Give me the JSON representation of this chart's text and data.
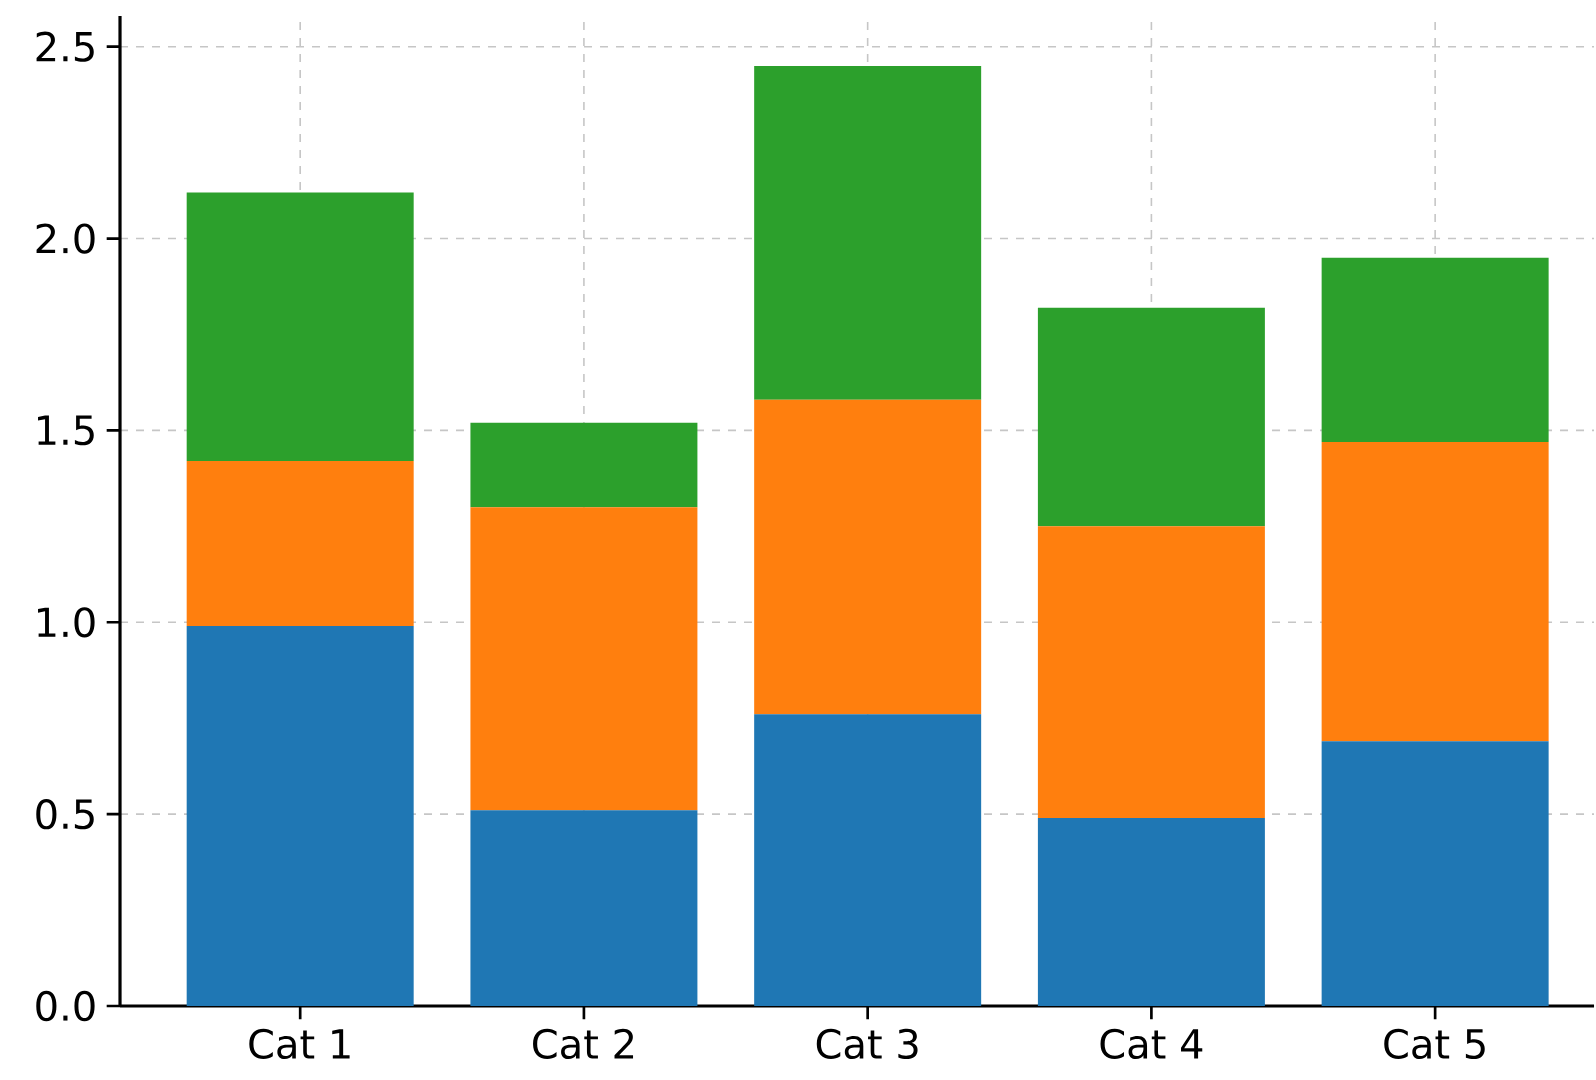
{
  "chart_data": {
    "type": "bar",
    "stacked": true,
    "grid": true,
    "categories": [
      "Cat 1",
      "Cat 2",
      "Cat 3",
      "Cat 4",
      "Cat 5"
    ],
    "series": [
      {
        "color": "#1f77b4",
        "values": [
          0.99,
          0.51,
          0.76,
          0.49,
          0.69
        ]
      },
      {
        "color": "#ff7f0e",
        "values": [
          0.43,
          0.79,
          0.82,
          0.76,
          0.78
        ]
      },
      {
        "color": "#2ca02c",
        "values": [
          0.7,
          0.22,
          0.87,
          0.57,
          0.48
        ]
      }
    ],
    "ylim": [
      0,
      2.58
    ],
    "yticks": [
      {
        "value": 0,
        "label": "0.0"
      },
      0.5,
      {
        "value": 1,
        "label": "1.0"
      },
      1.5,
      {
        "value": 2,
        "label": "2.0"
      },
      2.5
    ]
  }
}
